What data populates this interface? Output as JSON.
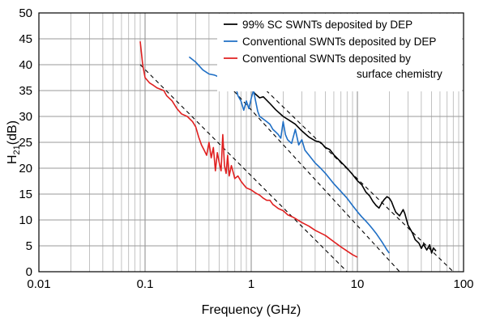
{
  "chart_data": {
    "type": "line",
    "title": "",
    "xlabel": "Frequency (GHz)",
    "ylabel_main": "H",
    "ylabel_sub": "21",
    "ylabel_unit": "(dB)",
    "xscale": "log",
    "xlim": [
      0.01,
      100
    ],
    "ylim": [
      0,
      50
    ],
    "x_ticks": [
      0.01,
      0.1,
      1,
      10,
      100
    ],
    "x_tick_labels": [
      "0.01",
      "0.1",
      "1",
      "10",
      "100"
    ],
    "y_ticks": [
      0,
      5,
      10,
      15,
      20,
      25,
      30,
      35,
      40,
      45,
      50
    ],
    "y_tick_labels": [
      "0",
      "5",
      "10",
      "15",
      "20",
      "25",
      "30",
      "35",
      "40",
      "45",
      "50"
    ],
    "grid": true,
    "legend_position": "top-right",
    "series": [
      {
        "name": "99% SC SWNTs deposited by DEP",
        "color": "#000000",
        "points": [
          [
            0.55,
            41.5
          ],
          [
            0.6,
            40.2
          ],
          [
            0.7,
            38.5
          ],
          [
            0.8,
            37.3
          ],
          [
            0.9,
            36.2
          ],
          [
            1.0,
            35.2
          ],
          [
            1.1,
            34.3
          ],
          [
            1.2,
            33.6
          ],
          [
            1.3,
            33.8
          ],
          [
            1.5,
            32.5
          ],
          [
            1.7,
            31.3
          ],
          [
            2.0,
            30.0
          ],
          [
            2.3,
            29.2
          ],
          [
            2.6,
            28.5
          ],
          [
            3.0,
            27.2
          ],
          [
            3.5,
            26.0
          ],
          [
            4.0,
            25.3
          ],
          [
            4.5,
            25.0
          ],
          [
            5.0,
            24.0
          ],
          [
            5.5,
            23.6
          ],
          [
            6.0,
            22.6
          ],
          [
            7.0,
            21.2
          ],
          [
            8.0,
            20.0
          ],
          [
            9.0,
            18.8
          ],
          [
            10.0,
            17.6
          ],
          [
            11.0,
            16.8
          ],
          [
            12.0,
            15.4
          ],
          [
            13.0,
            14.7
          ],
          [
            14.0,
            13.6
          ],
          [
            15.0,
            12.8
          ],
          [
            16.0,
            12.3
          ],
          [
            17.0,
            13.3
          ],
          [
            18.0,
            14.0
          ],
          [
            19.0,
            14.5
          ],
          [
            20.0,
            14.2
          ],
          [
            21.0,
            13.5
          ],
          [
            22.0,
            12.4
          ],
          [
            23.0,
            11.5
          ],
          [
            25.0,
            10.8
          ],
          [
            27.0,
            12.0
          ],
          [
            28.0,
            11.2
          ],
          [
            30.0,
            9.0
          ],
          [
            33.0,
            7.5
          ],
          [
            35.0,
            6.2
          ],
          [
            38.0,
            5.5
          ],
          [
            40.0,
            4.5
          ],
          [
            42.0,
            5.3
          ],
          [
            45.0,
            4.2
          ],
          [
            48.0,
            5.2
          ],
          [
            50.0,
            3.6
          ],
          [
            52.0,
            4.6
          ],
          [
            55.0,
            4.0
          ]
        ]
      },
      {
        "name": "Conventional SWNTs deposited by DEP",
        "color": "#1f6fc5",
        "points": [
          [
            0.26,
            41.5
          ],
          [
            0.3,
            40.5
          ],
          [
            0.35,
            39.0
          ],
          [
            0.4,
            38.2
          ],
          [
            0.45,
            38.0
          ],
          [
            0.5,
            37.6
          ],
          [
            0.55,
            37.0
          ],
          [
            0.6,
            36.2
          ],
          [
            0.65,
            35.3
          ],
          [
            0.7,
            36.5
          ],
          [
            0.75,
            34.0
          ],
          [
            0.8,
            33.0
          ],
          [
            0.85,
            31.2
          ],
          [
            0.9,
            33.0
          ],
          [
            0.95,
            31.5
          ],
          [
            1.0,
            33.5
          ],
          [
            1.05,
            35.0
          ],
          [
            1.1,
            33.0
          ],
          [
            1.15,
            31.0
          ],
          [
            1.2,
            30.0
          ],
          [
            1.3,
            29.5
          ],
          [
            1.4,
            29.0
          ],
          [
            1.5,
            28.5
          ],
          [
            1.6,
            27.5
          ],
          [
            1.7,
            27.0
          ],
          [
            1.8,
            26.5
          ],
          [
            1.9,
            25.8
          ],
          [
            2.0,
            29.0
          ],
          [
            2.1,
            26.5
          ],
          [
            2.2,
            25.5
          ],
          [
            2.4,
            24.8
          ],
          [
            2.6,
            27.5
          ],
          [
            2.8,
            24.5
          ],
          [
            3.0,
            25.5
          ],
          [
            3.2,
            23.5
          ],
          [
            3.5,
            22.5
          ],
          [
            4.0,
            21.0
          ],
          [
            4.5,
            20.0
          ],
          [
            5.0,
            19.0
          ],
          [
            6.0,
            17.0
          ],
          [
            7.0,
            15.5
          ],
          [
            8.0,
            14.2
          ],
          [
            9.0,
            12.8
          ],
          [
            10.0,
            11.6
          ],
          [
            11.0,
            10.6
          ],
          [
            12.0,
            9.8
          ],
          [
            13.0,
            9.0
          ],
          [
            14.0,
            8.2
          ],
          [
            15.0,
            7.4
          ],
          [
            16.0,
            6.6
          ],
          [
            17.0,
            5.8
          ],
          [
            18.0,
            5.0
          ],
          [
            19.0,
            4.2
          ],
          [
            20.0,
            3.6
          ]
        ]
      },
      {
        "name": "Conventional SWNTs deposited by surface chemistry",
        "color": "#e02020",
        "points": [
          [
            0.09,
            44.5
          ],
          [
            0.095,
            40.0
          ],
          [
            0.1,
            37.5
          ],
          [
            0.11,
            36.5
          ],
          [
            0.12,
            36.0
          ],
          [
            0.13,
            35.5
          ],
          [
            0.15,
            35.0
          ],
          [
            0.16,
            34.0
          ],
          [
            0.18,
            33.0
          ],
          [
            0.2,
            31.5
          ],
          [
            0.22,
            30.5
          ],
          [
            0.25,
            30.0
          ],
          [
            0.28,
            29.0
          ],
          [
            0.3,
            28.0
          ],
          [
            0.32,
            26.0
          ],
          [
            0.34,
            24.5
          ],
          [
            0.36,
            23.5
          ],
          [
            0.38,
            22.5
          ],
          [
            0.4,
            25.0
          ],
          [
            0.42,
            22.0
          ],
          [
            0.44,
            24.0
          ],
          [
            0.46,
            19.5
          ],
          [
            0.48,
            23.0
          ],
          [
            0.5,
            21.0
          ],
          [
            0.52,
            19.5
          ],
          [
            0.54,
            26.5
          ],
          [
            0.56,
            20.5
          ],
          [
            0.58,
            19.0
          ],
          [
            0.6,
            22.5
          ],
          [
            0.62,
            18.5
          ],
          [
            0.65,
            20.5
          ],
          [
            0.68,
            19.0
          ],
          [
            0.7,
            18.0
          ],
          [
            0.75,
            18.5
          ],
          [
            0.8,
            17.5
          ],
          [
            0.85,
            16.8
          ],
          [
            0.9,
            16.2
          ],
          [
            1.0,
            15.8
          ],
          [
            1.1,
            15.2
          ],
          [
            1.2,
            14.8
          ],
          [
            1.3,
            14.2
          ],
          [
            1.4,
            13.8
          ],
          [
            1.5,
            13.8
          ],
          [
            1.6,
            13.0
          ],
          [
            1.7,
            12.6
          ],
          [
            1.8,
            12.2
          ],
          [
            2.0,
            11.8
          ],
          [
            2.2,
            11.0
          ],
          [
            2.5,
            10.5
          ],
          [
            3.0,
            9.5
          ],
          [
            3.5,
            8.8
          ],
          [
            4.0,
            8.0
          ],
          [
            5.0,
            7.0
          ],
          [
            6.0,
            5.8
          ],
          [
            7.0,
            4.8
          ],
          [
            8.0,
            4.0
          ],
          [
            9.0,
            3.3
          ],
          [
            10.0,
            2.8
          ]
        ]
      }
    ],
    "fit_lines": [
      {
        "x": [
          0.09,
          8.0
        ],
        "y": [
          40.0,
          0
        ],
        "color": "#000000",
        "dash": true
      },
      {
        "x": [
          0.5,
          25.0
        ],
        "y": [
          38.0,
          0
        ],
        "color": "#000000",
        "dash": true
      },
      {
        "x": [
          1.1,
          80.0
        ],
        "y": [
          37.0,
          0
        ],
        "color": "#000000",
        "dash": true
      }
    ]
  }
}
